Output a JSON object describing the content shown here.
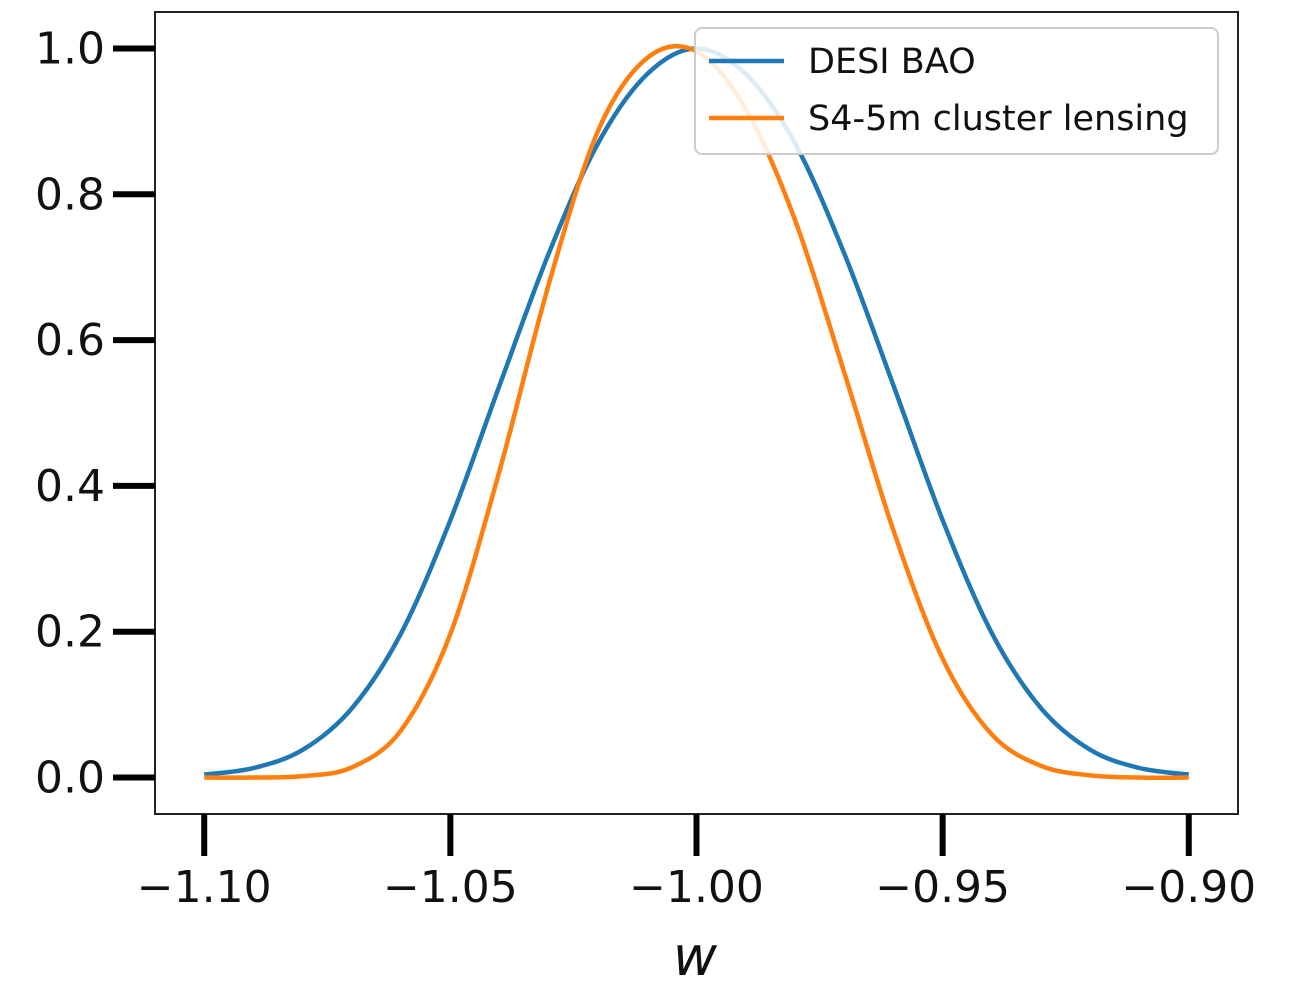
{
  "chart_data": {
    "type": "line",
    "title": "",
    "xlabel": "w",
    "ylabel": "",
    "xlim": [
      -1.11,
      -0.89
    ],
    "ylim": [
      -0.05,
      1.05
    ],
    "xticks": [
      -1.1,
      -1.05,
      -1.0,
      -0.95,
      -0.9
    ],
    "xtick_labels": [
      "−1.10",
      "−1.05",
      "−1.00",
      "−0.95",
      "−0.90"
    ],
    "yticks": [
      0.0,
      0.2,
      0.4,
      0.6,
      0.8,
      1.0
    ],
    "ytick_labels": [
      "0.0",
      "0.2",
      "0.4",
      "0.6",
      "0.8",
      "1.0"
    ],
    "grid": false,
    "legend_position": "top-right",
    "x": [
      -1.1,
      -1.09,
      -1.08,
      -1.07,
      -1.06,
      -1.05,
      -1.04,
      -1.03,
      -1.02,
      -1.01,
      -1.0,
      -0.99,
      -0.98,
      -0.97,
      -0.96,
      -0.95,
      -0.94,
      -0.93,
      -0.92,
      -0.91,
      -0.9
    ],
    "series": [
      {
        "name": "DESI BAO",
        "color": "#1f77b4",
        "values": [
          0.004,
          0.013,
          0.038,
          0.095,
          0.198,
          0.353,
          0.538,
          0.719,
          0.87,
          0.965,
          1.0,
          0.965,
          0.87,
          0.719,
          0.538,
          0.353,
          0.198,
          0.095,
          0.038,
          0.013,
          0.004
        ]
      },
      {
        "name": "S4-5m cluster lensing",
        "color": "#ff7f0e",
        "values": [
          0.0,
          0.0,
          0.002,
          0.014,
          0.065,
          0.197,
          0.421,
          0.677,
          0.887,
          0.987,
          0.996,
          0.917,
          0.765,
          0.556,
          0.339,
          0.163,
          0.059,
          0.016,
          0.003,
          0.0,
          0.0
        ]
      }
    ]
  }
}
